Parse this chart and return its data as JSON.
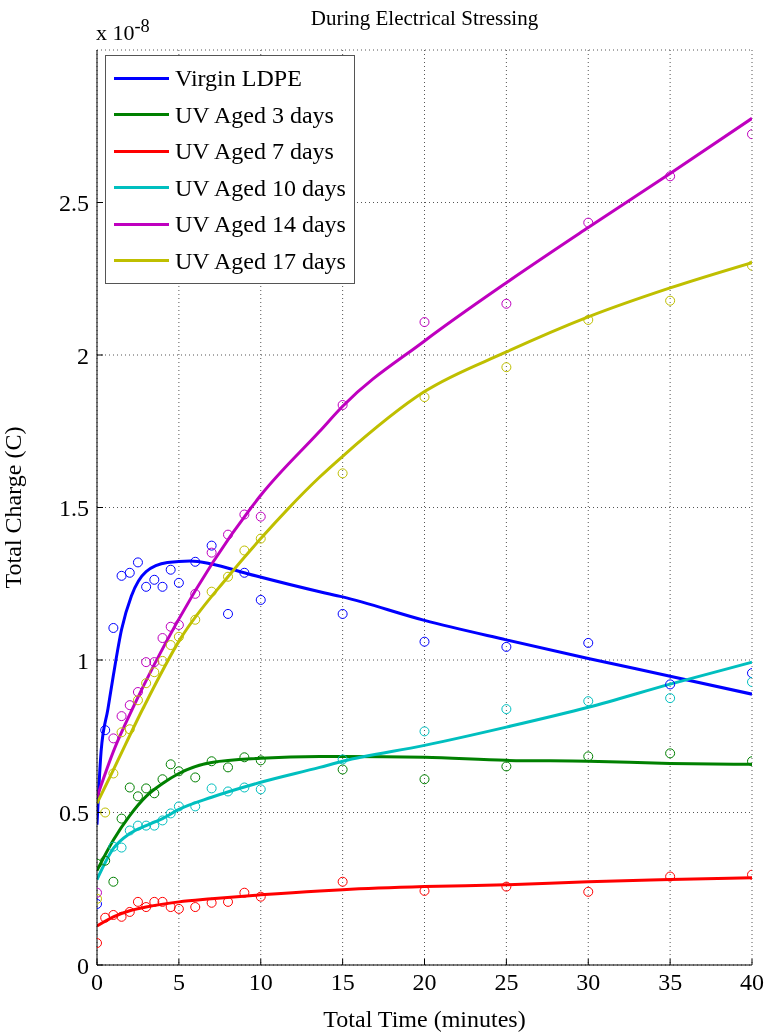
{
  "chart_data": {
    "type": "line",
    "title": "During Electrical Stressing",
    "xlabel": "Total Time (minutes)",
    "ylabel": "Total Charge (C)",
    "annotations": [
      "x 10$^{-8}$"
    ],
    "xlim": [
      0,
      40
    ],
    "xticks": [
      0,
      5,
      10,
      15,
      20,
      25,
      30,
      35,
      40
    ],
    "ylim": [
      0,
      3
    ],
    "yticks": [
      0,
      0.5,
      1,
      1.5,
      2,
      2.5
    ],
    "grid": true,
    "legend": "top left",
    "series": [
      {
        "name": "Virgin LDPE",
        "color": "#0000ff",
        "x": [
          0,
          0.25,
          0.67,
          1,
          1.5,
          2.1,
          3,
          4.3,
          5.7,
          7,
          9.2,
          13.6,
          15,
          20,
          25,
          30,
          35,
          40
        ],
        "values": [
          0.46,
          0.7,
          0.84,
          0.95,
          1.1,
          1.21,
          1.29,
          1.32,
          1.325,
          1.315,
          1.283,
          1.224,
          1.207,
          1.13,
          1.066,
          1.005,
          0.947,
          0.888
        ]
      },
      {
        "name": "UV Aged 3 days",
        "color": "#008000",
        "x": [
          0,
          1,
          2,
          3,
          4,
          5,
          7,
          10,
          13.6,
          15,
          20,
          25,
          30,
          35,
          40
        ],
        "values": [
          0.31,
          0.41,
          0.49,
          0.553,
          0.595,
          0.628,
          0.664,
          0.678,
          0.684,
          0.684,
          0.681,
          0.671,
          0.668,
          0.661,
          0.658
        ]
      },
      {
        "name": "UV Aged 7 days",
        "color": "#ff0000",
        "x": [
          0,
          1,
          2,
          3,
          5,
          7,
          10,
          13.6,
          15,
          20,
          25,
          30,
          35,
          40
        ],
        "values": [
          0.128,
          0.158,
          0.178,
          0.19,
          0.207,
          0.217,
          0.23,
          0.243,
          0.247,
          0.257,
          0.263,
          0.273,
          0.28,
          0.286
        ]
      },
      {
        "name": "UV Aged 10 days",
        "color": "#00bfbf",
        "x": [
          0,
          1,
          2,
          3,
          4,
          5,
          7,
          10,
          13.6,
          15,
          20,
          25,
          30,
          35,
          40
        ],
        "values": [
          0.28,
          0.382,
          0.431,
          0.457,
          0.48,
          0.51,
          0.55,
          0.599,
          0.648,
          0.668,
          0.72,
          0.78,
          0.845,
          0.921,
          0.993
        ]
      },
      {
        "name": "UV Aged 14 days",
        "color": "#bf00bf",
        "x": [
          0,
          1,
          2.3,
          4.9,
          7.1,
          10,
          13.6,
          15,
          20,
          25,
          30,
          35,
          40
        ],
        "values": [
          0.55,
          0.7,
          0.855,
          1.125,
          1.322,
          1.54,
          1.75,
          1.832,
          2.046,
          2.237,
          2.418,
          2.595,
          2.776
        ]
      },
      {
        "name": "UV Aged 17 days",
        "color": "#bfbf00",
        "x": [
          0,
          1,
          2.8,
          5.1,
          8,
          10,
          13.6,
          15,
          20,
          25,
          30,
          35,
          40
        ],
        "values": [
          0.53,
          0.64,
          0.84,
          1.07,
          1.273,
          1.398,
          1.6,
          1.668,
          1.88,
          2.01,
          2.125,
          2.22,
          2.303
        ]
      },
      {
        "type": "scatter",
        "marker": "circle",
        "color": "#0000ff",
        "x": [
          0,
          0.5,
          1,
          1.5,
          2,
          2.5,
          3,
          3.5,
          4,
          4.5,
          5,
          6,
          7,
          8,
          9,
          10,
          15,
          20,
          25,
          30,
          35,
          40
        ],
        "values": [
          0.2,
          0.77,
          1.105,
          1.276,
          1.286,
          1.32,
          1.24,
          1.263,
          1.24,
          1.296,
          1.253,
          1.322,
          1.375,
          1.151,
          1.286,
          1.197,
          1.151,
          1.06,
          1.043,
          1.056,
          0.92,
          0.957
        ]
      },
      {
        "type": "scatter",
        "marker": "circle",
        "color": "#008000",
        "x": [
          0,
          0.5,
          1,
          1.5,
          2,
          2.5,
          3,
          3.5,
          4,
          4.5,
          5,
          6,
          7,
          8,
          9,
          10,
          15,
          20,
          25,
          30,
          35,
          40
        ],
        "values": [
          0.332,
          0.342,
          0.273,
          0.48,
          0.582,
          0.553,
          0.579,
          0.563,
          0.609,
          0.658,
          0.635,
          0.615,
          0.668,
          0.648,
          0.681,
          0.671,
          0.641,
          0.609,
          0.651,
          0.684,
          0.694,
          0.668
        ]
      },
      {
        "type": "scatter",
        "marker": "circle",
        "color": "#ff0000",
        "x": [
          0,
          0.5,
          1,
          1.5,
          2,
          2.5,
          3,
          3.5,
          4,
          4.5,
          5,
          6,
          7,
          8,
          9,
          10,
          15,
          20,
          25,
          30,
          35,
          40
        ],
        "values": [
          0.072,
          0.155,
          0.164,
          0.158,
          0.174,
          0.207,
          0.19,
          0.207,
          0.207,
          0.19,
          0.184,
          0.19,
          0.204,
          0.207,
          0.237,
          0.224,
          0.273,
          0.243,
          0.257,
          0.24,
          0.29,
          0.296
        ]
      },
      {
        "type": "scatter",
        "marker": "circle",
        "color": "#00bfbf",
        "x": [
          1,
          1.5,
          2,
          2.5,
          3,
          3.5,
          4,
          4.5,
          5,
          6,
          7,
          8,
          9,
          10,
          15,
          20,
          25,
          30,
          35,
          40
        ],
        "values": [
          0.388,
          0.385,
          0.441,
          0.457,
          0.457,
          0.457,
          0.474,
          0.497,
          0.52,
          0.52,
          0.579,
          0.569,
          0.582,
          0.576,
          0.674,
          0.766,
          0.839,
          0.865,
          0.875,
          0.928
        ]
      },
      {
        "type": "scatter",
        "marker": "circle",
        "color": "#bf00bf",
        "x": [
          0,
          1,
          1.5,
          2,
          2.5,
          3,
          3.5,
          4,
          4.5,
          5,
          6,
          7,
          8,
          9,
          10,
          15,
          20,
          25,
          30,
          35,
          40
        ],
        "values": [
          0.237,
          0.743,
          0.816,
          0.852,
          0.895,
          0.993,
          0.993,
          1.072,
          1.109,
          1.115,
          1.217,
          1.352,
          1.411,
          1.477,
          1.47,
          1.836,
          2.108,
          2.168,
          2.434,
          2.586,
          2.724
        ]
      },
      {
        "type": "scatter",
        "marker": "circle",
        "color": "#bfbf00",
        "x": [
          0,
          0.5,
          1,
          1.5,
          2,
          2.5,
          3,
          3.5,
          4,
          4.5,
          5,
          6,
          7,
          8,
          9,
          10,
          15,
          20,
          25,
          30,
          35,
          40
        ],
        "values": [
          0.217,
          0.5,
          0.628,
          0.763,
          0.773,
          0.868,
          0.924,
          0.96,
          0.997,
          1.049,
          1.076,
          1.132,
          1.224,
          1.273,
          1.359,
          1.398,
          1.612,
          1.862,
          1.96,
          2.115,
          2.178,
          2.293
        ]
      }
    ]
  }
}
